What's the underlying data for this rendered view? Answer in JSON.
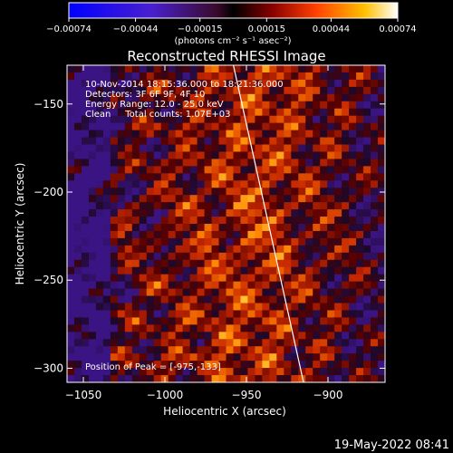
{
  "chart_data": {
    "type": "heatmap",
    "title": "Reconstructed RHESSI Image",
    "xlabel": "Heliocentric X (arcsec)",
    "ylabel": "Heliocentric Y (arcsec)",
    "xlim": [
      -1060,
      -865
    ],
    "ylim": [
      -308,
      -128
    ],
    "xticks": [
      -1050,
      -1000,
      -950,
      -900
    ],
    "xtick_labels": [
      "−1050",
      "−1000",
      "−950",
      "−900"
    ],
    "yticks": [
      -150,
      -200,
      -250,
      -300
    ],
    "ytick_labels": [
      "−150",
      "−200",
      "−250",
      "−300"
    ],
    "colorbar": {
      "min": -0.00074,
      "max": 0.00074,
      "ticks": [
        -0.00074,
        -0.00044,
        -0.00015,
        0.00015,
        0.00044,
        0.00074
      ],
      "tick_labels": [
        "−0.00074",
        "−0.00044",
        "−0.00015",
        "0.00015",
        "0.00044",
        "0.00074"
      ],
      "unit_label": "(photons cm⁻² s⁻¹ asec⁻²)"
    },
    "annotations": [
      "10-Nov-2014 18:15:36.000 to 18:21:36.000",
      "Detectors: 3F 6F 9F, 4F 10",
      "Energy Range: 12.0 - 25.0 keV",
      "Clean     Total counts: 1.07E+03",
      "Position of Peak = [-975,-133]"
    ],
    "limb_line": {
      "x": [
        -958,
        -915
      ],
      "y": [
        -128,
        -308
      ]
    },
    "peak_position": [
      -975,
      -133
    ],
    "grid": false
  },
  "footer": {
    "timestamp": "19-May-2022 08:41"
  },
  "colors": {
    "background": "#000000",
    "foreground": "#ffffff"
  }
}
